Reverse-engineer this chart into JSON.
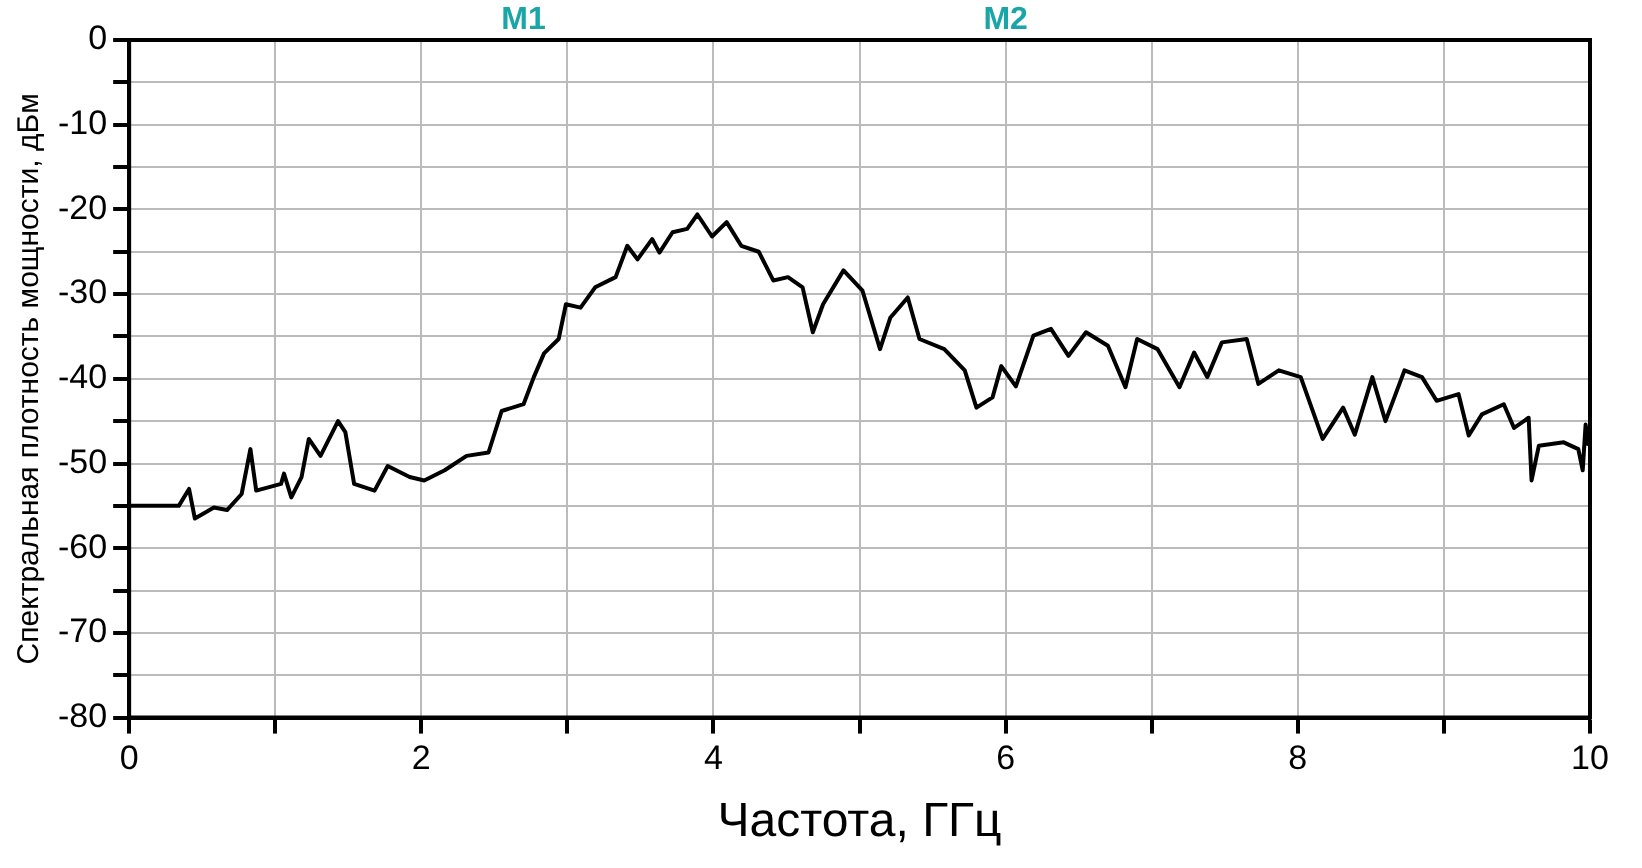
{
  "chart_data": {
    "type": "line",
    "xlabel": "Частота, ГГц",
    "ylabel": "Спектральная плотность мощности, дБм",
    "annotations": [
      "M1",
      "M2"
    ],
    "xlim": [
      0,
      10
    ],
    "ylim": [
      -80,
      0
    ],
    "xticks": [
      0,
      {
        "value": 1,
        "label": null
      },
      2,
      {
        "value": 3,
        "label": null
      },
      4,
      {
        "value": 5,
        "label": null
      },
      6,
      {
        "value": 7,
        "label": null
      },
      8,
      {
        "value": 9,
        "label": null
      },
      10
    ],
    "yticks": [
      -80,
      {
        "value": -75,
        "label": null
      },
      -70,
      {
        "value": -65,
        "label": null
      },
      -60,
      {
        "value": -55,
        "label": null
      },
      -50,
      {
        "value": -45,
        "label": null
      },
      -40,
      {
        "value": -35,
        "label": null
      },
      -30,
      {
        "value": -25,
        "label": null
      },
      -20,
      {
        "value": -15,
        "label": null
      },
      -10,
      {
        "value": -5,
        "label": null
      },
      0
    ],
    "grid": true,
    "marker": "none",
    "line_style": "solid",
    "series": [
      {
        "color": "#000000",
        "x": [
          0,
          0.34,
          0.41,
          0.45,
          0.58,
          0.67,
          0.77,
          0.83,
          0.87,
          1.04,
          1.06,
          1.11,
          1.18,
          1.23,
          1.31,
          1.43,
          1.48,
          1.54,
          1.68,
          1.77,
          1.92,
          2.02,
          2.16,
          2.31,
          2.46,
          2.55,
          2.7,
          2.77,
          2.84,
          2.94,
          2.99,
          3.09,
          3.19,
          3.33,
          3.41,
          3.48,
          3.58,
          3.63,
          3.72,
          3.82,
          3.89,
          3.99,
          4.09,
          4.19,
          4.31,
          4.41,
          4.51,
          4.61,
          4.68,
          4.75,
          4.89,
          5.02,
          5.14,
          5.21,
          5.33,
          5.41,
          5.58,
          5.72,
          5.8,
          5.91,
          5.97,
          6.07,
          6.19,
          6.31,
          6.43,
          6.55,
          6.7,
          6.82,
          6.9,
          7.04,
          7.19,
          7.29,
          7.38,
          7.48,
          7.65,
          7.73,
          7.87,
          8.02,
          8.17,
          8.31,
          8.39,
          8.51,
          8.6,
          8.73,
          8.85,
          8.95,
          9.1,
          9.17,
          9.26,
          9.41,
          9.48,
          9.58,
          9.6,
          9.65,
          9.82,
          9.92,
          9.95,
          9.97,
          9.99
        ],
        "values": [
          -55,
          -55,
          -53,
          -56.5,
          -55.2,
          -55.5,
          -53.6,
          -48.3,
          -53.2,
          -52.4,
          -51.2,
          -54,
          -51.6,
          -47.1,
          -49.1,
          -45,
          -46.3,
          -52.4,
          -53.2,
          -50.3,
          -51.6,
          -52,
          -50.8,
          -49.1,
          -48.7,
          -43.8,
          -43,
          -39.8,
          -37,
          -35.3,
          -31.2,
          -31.6,
          -29.2,
          -28,
          -24.3,
          -25.9,
          -23.5,
          -25.1,
          -22.7,
          -22.3,
          -20.6,
          -23.2,
          -21.5,
          -24.3,
          -25,
          -28.4,
          -28,
          -29.2,
          -34.5,
          -31.2,
          -27.2,
          -29.6,
          -36.5,
          -32.8,
          -30.4,
          -35.3,
          -36.5,
          -39,
          -43.4,
          -42.2,
          -38.5,
          -40.9,
          -34.9,
          -34.1,
          -37.3,
          -34.5,
          -36.1,
          -41,
          -35.3,
          -36.5,
          -41,
          -36.9,
          -39.8,
          -35.7,
          -35.3,
          -40.6,
          -39,
          -39.8,
          -47.1,
          -43.4,
          -46.6,
          -39.8,
          -45,
          -39,
          -39.8,
          -42.6,
          -41.8,
          -46.7,
          -44.2,
          -43,
          -45.8,
          -44.6,
          -52,
          -47.9,
          -47.5,
          -48.3,
          -50.8,
          -45.4,
          -47.9
        ]
      }
    ]
  }
}
